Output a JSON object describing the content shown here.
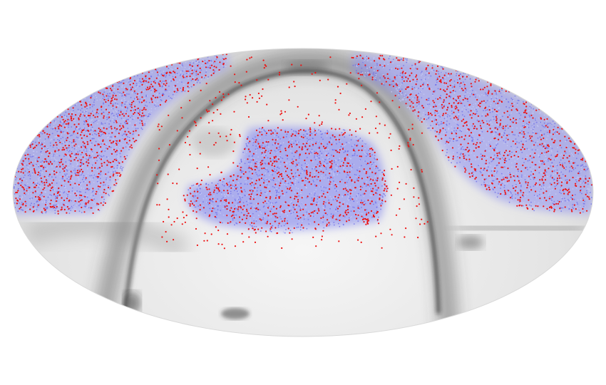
{
  "map": {
    "projection": "mollweide",
    "background": "greyscale-dust-extinction",
    "colors": {
      "sky_light": "#f2f2f2",
      "sky_mid": "#c8c8c8",
      "dust_dark": "#3a3a3a",
      "footprint_dense": "#6f6fe8",
      "footprint_light": "#c4c8f4",
      "point_red": "#ee1111"
    },
    "footprints": [
      {
        "name": "survey-footprint-left",
        "density": "high"
      },
      {
        "name": "survey-footprint-center",
        "density": "high"
      },
      {
        "name": "survey-footprint-right",
        "density": "high"
      }
    ],
    "overlay_points": {
      "color": "red",
      "density": "scattered"
    }
  }
}
